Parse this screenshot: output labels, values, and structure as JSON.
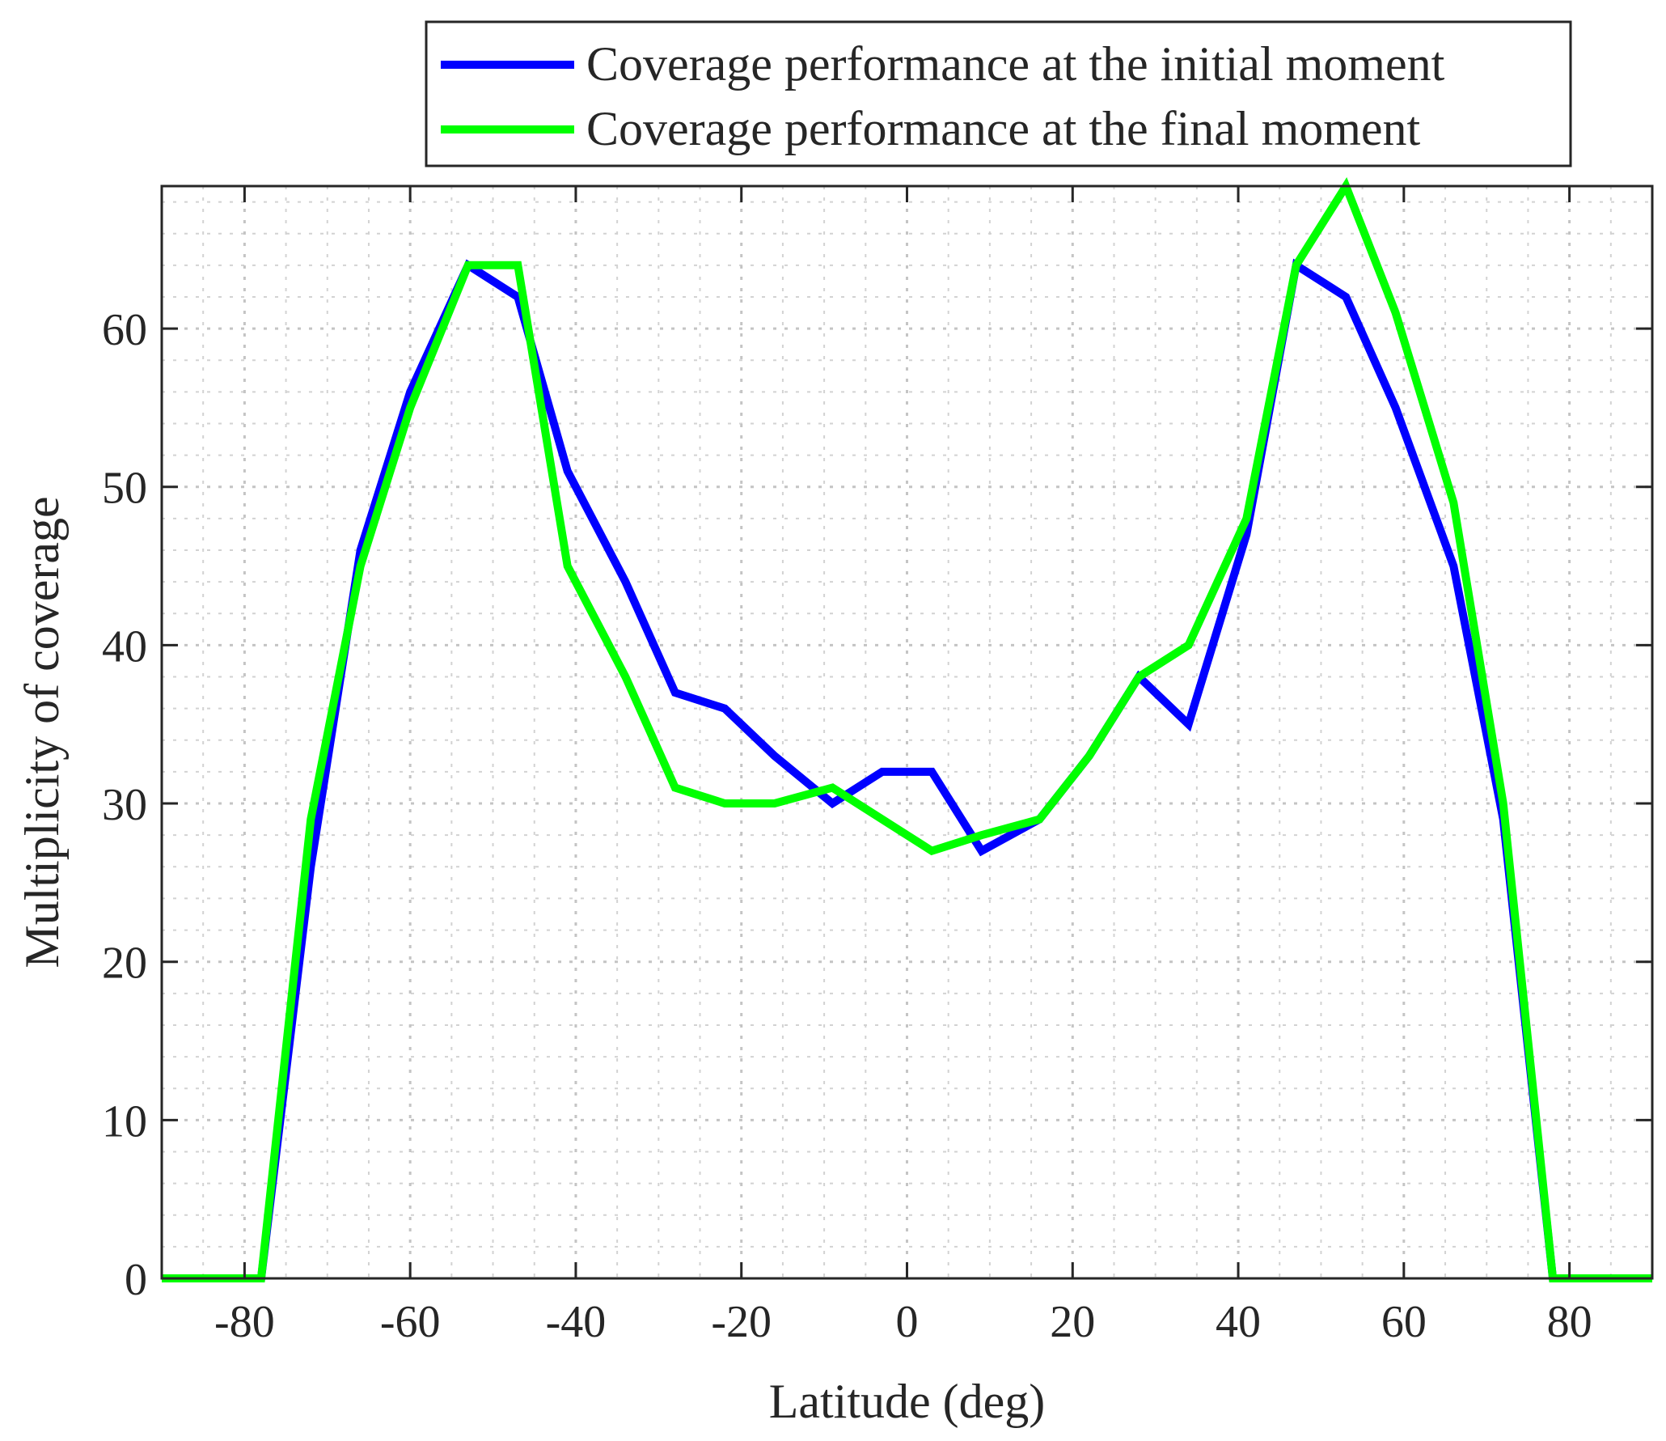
{
  "chart_data": {
    "type": "line",
    "xlabel": "Latitude (deg)",
    "ylabel": "Multiplicity of coverage",
    "xlim": [
      -90,
      90
    ],
    "ylim": [
      0,
      69
    ],
    "xticks": [
      -80,
      -60,
      -40,
      -20,
      0,
      20,
      40,
      60,
      80
    ],
    "yticks": [
      0,
      10,
      20,
      30,
      40,
      50,
      60
    ],
    "x_minor_step": 5,
    "y_minor_step": 2,
    "grid": true,
    "legend_position": "top-right-outside",
    "series": [
      {
        "name": "Coverage performance at the initial moment",
        "color": "#0000ff",
        "x": [
          -90,
          -78,
          -72,
          -66,
          -60,
          -53,
          -47,
          -41,
          -34,
          -28,
          -22,
          -16,
          -9,
          -3,
          3,
          9,
          16,
          22,
          28,
          34,
          41,
          47,
          53,
          59,
          66,
          72,
          78,
          90
        ],
        "y": [
          0,
          0,
          26,
          46,
          56,
          64,
          62,
          51,
          44,
          37,
          36,
          33,
          30,
          32,
          32,
          27,
          29,
          33,
          38,
          35,
          47,
          64,
          62,
          55,
          45,
          29,
          0,
          0
        ]
      },
      {
        "name": "Coverage performance at the final moment",
        "color": "#00ff00",
        "x": [
          -90,
          -78,
          -72,
          -66,
          -60,
          -53,
          -47,
          -41,
          -34,
          -28,
          -22,
          -16,
          -9,
          -3,
          3,
          9,
          16,
          22,
          28,
          34,
          41,
          47,
          53,
          59,
          66,
          72,
          78,
          90
        ],
        "y": [
          0,
          0,
          29,
          45,
          55,
          64,
          64,
          45,
          38,
          31,
          30,
          30,
          31,
          29,
          27,
          28,
          29,
          33,
          38,
          40,
          48,
          64,
          69,
          61,
          49,
          30,
          0,
          0
        ]
      }
    ]
  }
}
